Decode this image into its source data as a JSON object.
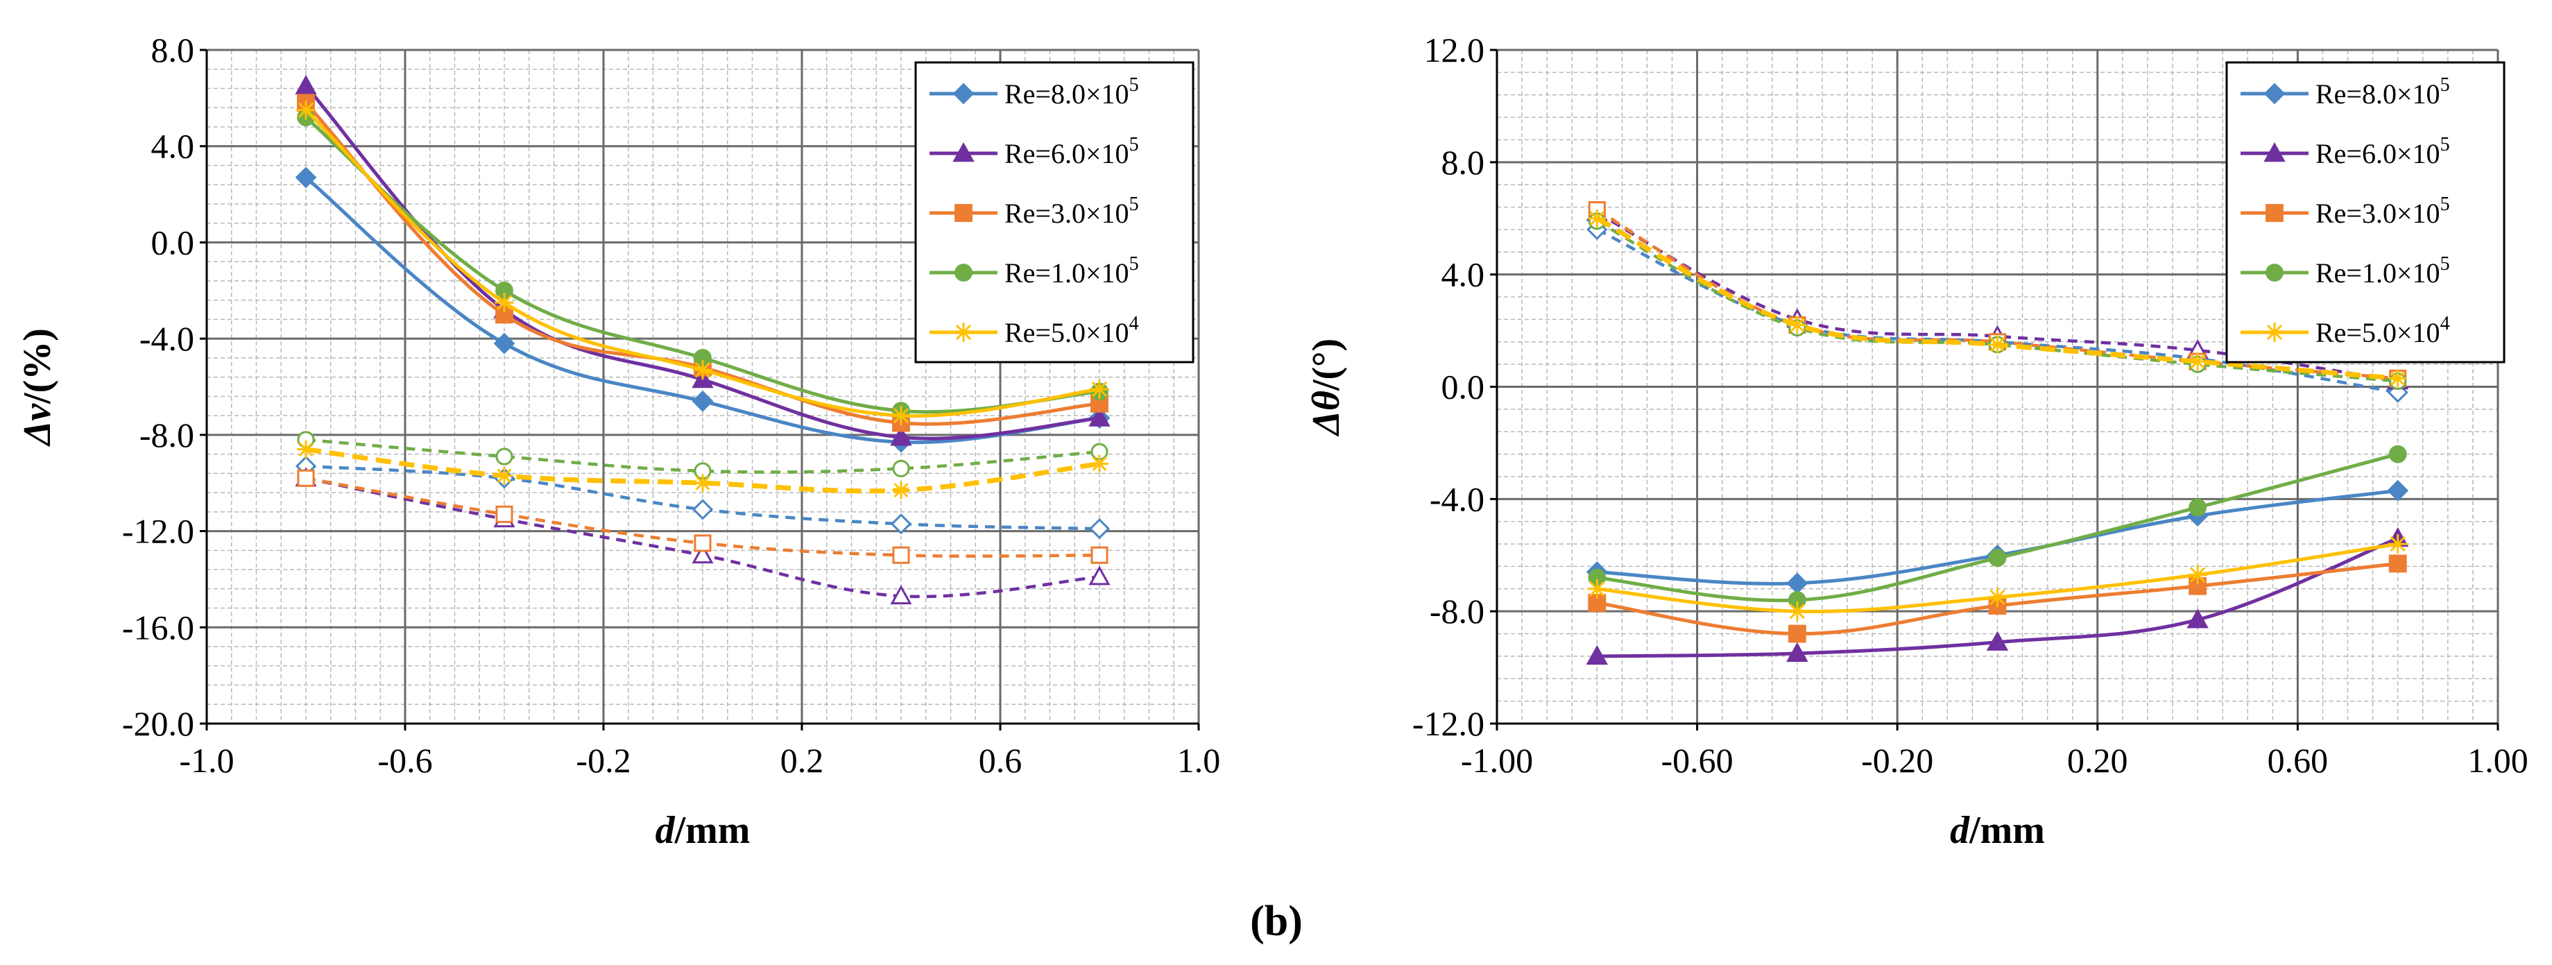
{
  "caption": "(b)",
  "chart_data": [
    {
      "type": "line",
      "ylabel_sym": "Δv",
      "ylabel_unit": "/(%)",
      "xlabel_sym": "d",
      "xlabel_unit": "/mm",
      "xlim": [
        -1.0,
        1.0
      ],
      "ylim": [
        -20.0,
        8.0
      ],
      "xticks": [
        -1.0,
        -0.6,
        -0.2,
        0.2,
        0.6,
        1.0
      ],
      "xtick_labels": [
        "-1.0",
        "-0.6",
        "-0.2",
        "0.2",
        "0.6",
        "1.0"
      ],
      "yticks": [
        8.0,
        4.0,
        0.0,
        -4.0,
        -8.0,
        -12.0,
        -16.0,
        -20.0
      ],
      "ytick_labels": [
        "8.0",
        "4.0",
        "0.0",
        "-4.0",
        "-8.0",
        "-12.0",
        "-16.0",
        "-20.0"
      ],
      "x": [
        -0.8,
        -0.4,
        0.0,
        0.4,
        0.8
      ],
      "legend_position": "top-right",
      "series": [
        {
          "name": "Re=8.0×10⁵",
          "legend_main": "Re=8.0×10",
          "legend_exp": "5",
          "color": "#4a86c5",
          "marker": "diamond",
          "solid": [
            2.7,
            -4.2,
            -6.6,
            -8.3,
            -7.3
          ],
          "dashed": [
            -9.3,
            -9.8,
            -11.1,
            -11.7,
            -11.9
          ]
        },
        {
          "name": "Re=6.0×10⁵",
          "legend_main": "Re=6.0×10",
          "legend_exp": "5",
          "color": "#7030a0",
          "marker": "triangle",
          "solid": [
            6.5,
            -2.8,
            -5.7,
            -8.1,
            -7.3
          ],
          "dashed": [
            -9.8,
            -11.5,
            -13.0,
            -14.7,
            -13.9
          ]
        },
        {
          "name": "Re=3.0×10⁵",
          "legend_main": "Re=3.0×10",
          "legend_exp": "5",
          "color": "#ed7d31",
          "marker": "square",
          "solid": [
            5.8,
            -3.0,
            -5.2,
            -7.5,
            -6.7
          ],
          "dashed": [
            -9.8,
            -11.3,
            -12.5,
            -13.0,
            -13.0
          ]
        },
        {
          "name": "Re=1.0×10⁵",
          "legend_main": "Re=1.0×10",
          "legend_exp": "5",
          "color": "#70ad47",
          "marker": "circle",
          "solid": [
            5.2,
            -2.0,
            -4.8,
            -7.0,
            -6.2
          ],
          "dashed": [
            -8.2,
            -8.9,
            -9.5,
            -9.4,
            -8.7
          ]
        },
        {
          "name": "Re=5.0×10⁴",
          "legend_main": "Re=5.0×10",
          "legend_exp": "4",
          "color": "#ffc000",
          "marker": "star",
          "solid": [
            5.5,
            -2.5,
            -5.3,
            -7.2,
            -6.1
          ],
          "dashed": [
            -8.6,
            -9.7,
            -10.0,
            -10.3,
            -9.2
          ]
        }
      ]
    },
    {
      "type": "line",
      "ylabel_sym": "Δθ",
      "ylabel_unit": "/(°)",
      "xlabel_sym": "d",
      "xlabel_unit": "/mm",
      "xlim": [
        -1.0,
        1.0
      ],
      "ylim": [
        -12.0,
        12.0
      ],
      "xticks": [
        -1.0,
        -0.6,
        -0.2,
        0.2,
        0.6,
        1.0
      ],
      "xtick_labels": [
        "-1.00",
        "-0.60",
        "-0.20",
        "0.20",
        "0.60",
        "1.00"
      ],
      "yticks": [
        12.0,
        8.0,
        4.0,
        0.0,
        -4.0,
        -8.0,
        -12.0
      ],
      "ytick_labels": [
        "12.0",
        "8.0",
        "4.0",
        "0.0",
        "-4.0",
        "-8.0",
        "-12.0"
      ],
      "x": [
        -0.8,
        -0.4,
        0.0,
        0.4,
        0.8
      ],
      "legend_position": "top-right",
      "series": [
        {
          "name": "Re=8.0×10⁵",
          "legend_main": "Re=8.0×10",
          "legend_exp": "5",
          "color": "#4a86c5",
          "marker": "diamond",
          "solid": [
            -6.6,
            -7.0,
            -6.0,
            -4.6,
            -3.7
          ],
          "dashed": [
            5.6,
            2.2,
            1.6,
            1.0,
            -0.2
          ]
        },
        {
          "name": "Re=6.0×10⁵",
          "legend_main": "Re=6.0×10",
          "legend_exp": "5",
          "color": "#7030a0",
          "marker": "triangle",
          "solid": [
            -9.6,
            -9.5,
            -9.1,
            -8.3,
            -5.4
          ],
          "dashed": [
            6.2,
            2.4,
            1.8,
            1.3,
            0.2
          ]
        },
        {
          "name": "Re=3.0×10⁵",
          "legend_main": "Re=3.0×10",
          "legend_exp": "5",
          "color": "#ed7d31",
          "marker": "square",
          "solid": [
            -7.7,
            -8.8,
            -7.8,
            -7.1,
            -6.3
          ],
          "dashed": [
            6.3,
            2.2,
            1.6,
            0.9,
            0.3
          ]
        },
        {
          "name": "Re=1.0×10⁵",
          "legend_main": "Re=1.0×10",
          "legend_exp": "5",
          "color": "#70ad47",
          "marker": "circle",
          "solid": [
            -6.8,
            -7.6,
            -6.1,
            -4.3,
            -2.4
          ],
          "dashed": [
            5.9,
            2.1,
            1.5,
            0.8,
            0.2
          ]
        },
        {
          "name": "Re=5.0×10⁴",
          "legend_main": "Re=5.0×10",
          "legend_exp": "4",
          "color": "#ffc000",
          "marker": "star",
          "solid": [
            -7.2,
            -8.0,
            -7.5,
            -6.7,
            -5.6
          ],
          "dashed": [
            6.0,
            2.2,
            1.5,
            0.9,
            0.3
          ]
        }
      ]
    }
  ]
}
